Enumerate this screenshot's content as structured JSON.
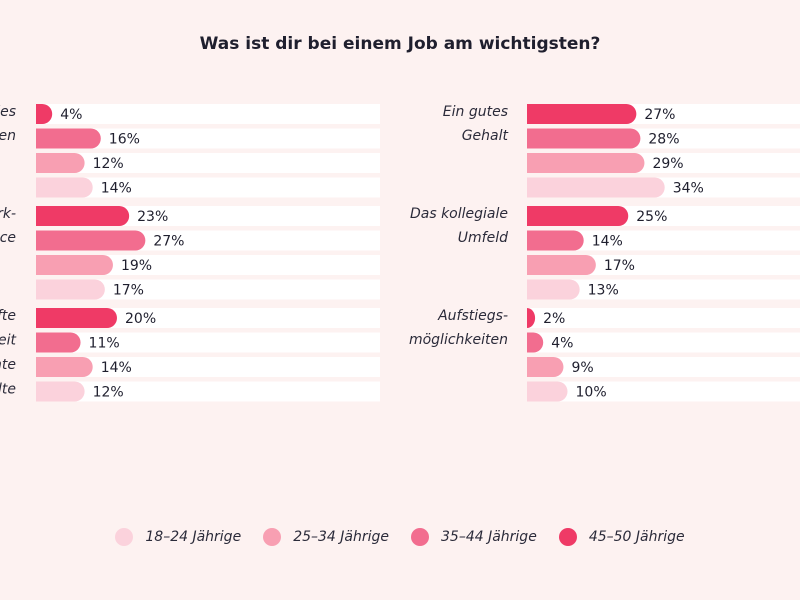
{
  "title": "Was ist dir bei einem Job am wichtigsten?",
  "colors": [
    "#fbd2dc",
    "#f89fb2",
    "#f26d8f",
    "#ef3a66"
  ],
  "legend": [
    {
      "label": "18–24 Jährige"
    },
    {
      "label": "25–34 Jährige"
    },
    {
      "label": "35–44 Jährige"
    },
    {
      "label": "45–50 Jährige"
    }
  ],
  "chart_data": {
    "type": "bar",
    "orientation": "horizontal",
    "title": "Was ist dir bei einem Job am wichtigsten?",
    "unit": "%",
    "series_order_top_to_bottom": [
      "45–50 Jährige",
      "35–44 Jährige",
      "25–34 Jährige",
      "18–24 Jährige"
    ],
    "xlim": [
      0,
      100
    ],
    "groups": [
      {
        "side": "left",
        "label_lines": [
          "des",
          "en"
        ],
        "values": [
          4,
          16,
          12,
          14
        ]
      },
      {
        "side": "left",
        "label_lines": [
          "rk-",
          "ce"
        ],
        "values": [
          23,
          27,
          19,
          17
        ]
      },
      {
        "side": "left",
        "label_lines": [
          "fte",
          "eit",
          "nte",
          "lte"
        ],
        "values": [
          20,
          11,
          14,
          12
        ]
      },
      {
        "side": "right",
        "label_lines": [
          "Ein gutes",
          "Gehalt"
        ],
        "values": [
          27,
          28,
          29,
          34
        ]
      },
      {
        "side": "right",
        "label_lines": [
          "Das kollegiale",
          "Umfeld"
        ],
        "values": [
          25,
          14,
          17,
          13
        ]
      },
      {
        "side": "right",
        "label_lines": [
          "Aufstiegs-",
          "möglichkeiten"
        ],
        "values": [
          2,
          4,
          9,
          10
        ]
      }
    ]
  }
}
